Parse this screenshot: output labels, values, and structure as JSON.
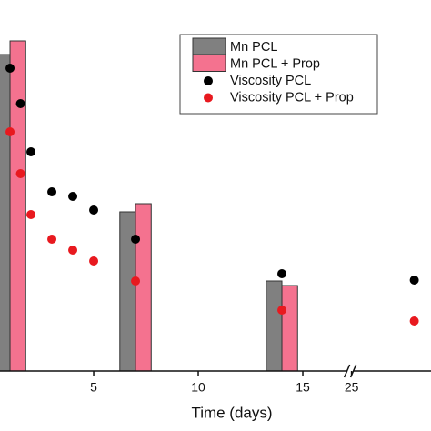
{
  "chart_data": {
    "type": "bar",
    "xlabel": "Time (days)",
    "xlim": [
      0.52,
      28.8
    ],
    "xbreak": [
      17.2,
      25
    ],
    "xticks": [
      5,
      10,
      15,
      25
    ],
    "ylim": [
      0,
      370
    ],
    "legend": "upper right",
    "series": [
      {
        "name": "Mn PCL",
        "type": "bar",
        "color": "#808080",
        "x": [
          1,
          7,
          14
        ],
        "values": [
          348,
          175,
          99
        ]
      },
      {
        "name": "Mn PCL + Prop",
        "type": "bar",
        "color": "#f4728f",
        "x": [
          1,
          7,
          14
        ],
        "values": [
          363,
          184,
          94
        ]
      },
      {
        "name": "Viscosity PCL",
        "type": "scatter",
        "color": "#000000",
        "x": [
          1,
          1.5,
          2,
          3,
          4,
          5,
          7,
          14,
          28
        ],
        "values": [
          333,
          294,
          241,
          197,
          192,
          177,
          145,
          107,
          100
        ]
      },
      {
        "name": "Viscosity PCL + Prop",
        "type": "scatter",
        "color": "#e8191f",
        "x": [
          1,
          1.5,
          2,
          3,
          4,
          5,
          7,
          14,
          28
        ],
        "values": [
          263,
          217,
          172,
          145,
          133,
          121,
          99,
          67,
          55
        ]
      }
    ]
  }
}
